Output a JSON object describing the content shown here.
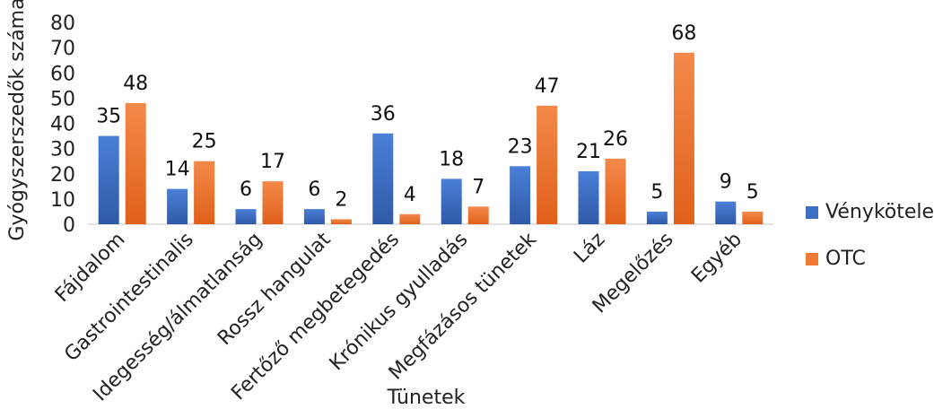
{
  "chart_data": {
    "type": "bar",
    "categories": [
      "Fájdalom",
      "Gastrointestinalis",
      "Idegesség/álmatlanság",
      "Rossz hangulat",
      "Fertőző megbetegedés",
      "Krónikus gyulladás",
      "Megfázásos tünetek",
      "Láz",
      "Megelőzés",
      "Egyéb"
    ],
    "series": [
      {
        "name": "Vényköteles",
        "color": "#3f6fc4",
        "values": [
          35,
          14,
          6,
          6,
          36,
          18,
          23,
          21,
          5,
          9
        ]
      },
      {
        "name": "OTC",
        "color": "#f07a33",
        "values": [
          48,
          25,
          17,
          2,
          4,
          7,
          47,
          26,
          68,
          5
        ]
      }
    ],
    "title": "",
    "xlabel": "Tünetek",
    "ylabel": "Gyógyszerszedők száma",
    "ylim": [
      0,
      80
    ],
    "yticks": [
      0,
      10,
      20,
      30,
      40,
      50,
      60,
      70,
      80
    ],
    "grid": false,
    "legend": "right"
  }
}
